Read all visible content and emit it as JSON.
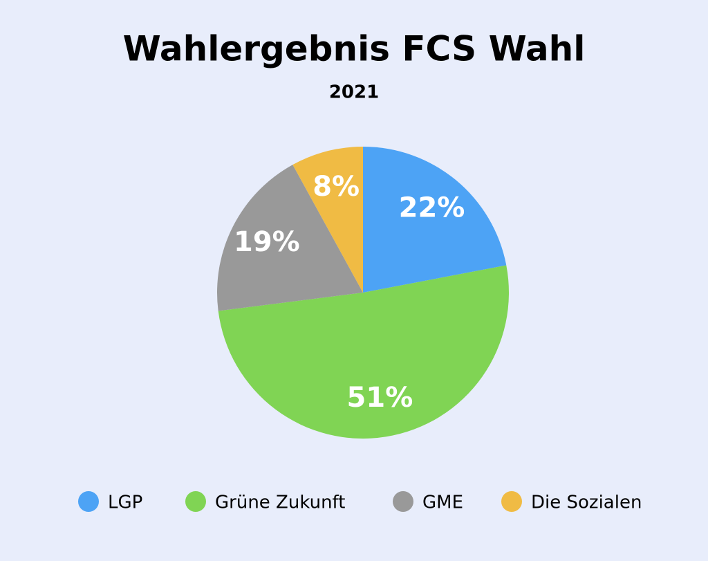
{
  "chart_data": {
    "type": "pie",
    "title": "Wahlergebnis FCS Wahl",
    "subtitle": "2021",
    "categories": [
      "LGP",
      "Grüne Zukunft",
      "GME",
      "Die Sozialen"
    ],
    "values": [
      22,
      51,
      19,
      8
    ],
    "value_labels": [
      "22%",
      "51%",
      "19%",
      "8%"
    ],
    "colors": [
      "#4da3f5",
      "#80d454",
      "#999999",
      "#f0bb44"
    ],
    "legend": "bottom"
  }
}
